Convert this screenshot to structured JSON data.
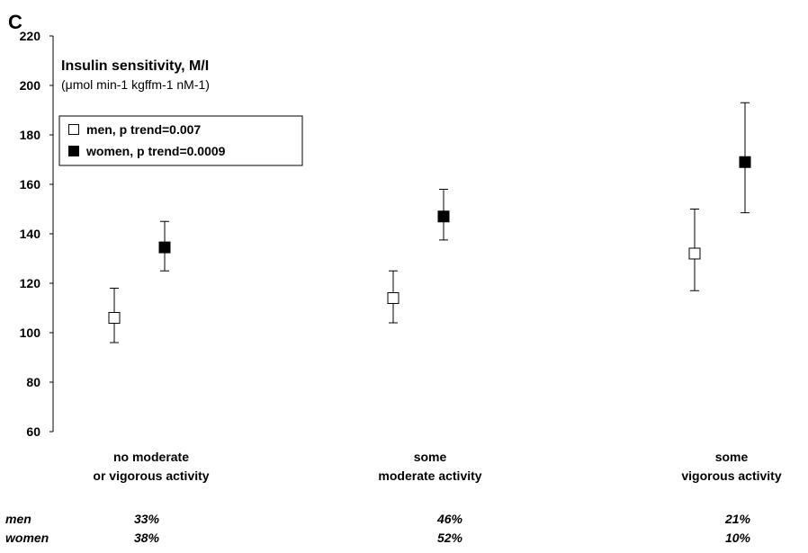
{
  "panel_letter": "C",
  "chart_data": {
    "type": "scatter",
    "title": "Insulin sensitivity, M/I",
    "subtitle": "(μmol min-1 kgffm-1 nM-1)",
    "ylim": [
      60,
      220
    ],
    "yticks": [
      60,
      80,
      100,
      120,
      140,
      160,
      180,
      200,
      220
    ],
    "categories": [
      [
        "no moderate",
        "or vigorous activity"
      ],
      [
        "some",
        "moderate activity"
      ],
      [
        "some",
        "vigorous activity"
      ]
    ],
    "series": [
      {
        "name": "men,  p trend=0.007",
        "marker": "open-square",
        "values": [
          106,
          114,
          132
        ],
        "err_low": [
          96,
          104,
          117
        ],
        "err_high": [
          118,
          125,
          150
        ]
      },
      {
        "name": "women,  p trend=0.0009",
        "marker": "filled-square",
        "values": [
          134.5,
          147,
          169
        ],
        "err_low": [
          125,
          137.5,
          148.5
        ],
        "err_high": [
          145,
          158,
          193
        ]
      }
    ],
    "legend_position": "top-left",
    "grid": false,
    "percent_table": {
      "rows": [
        {
          "label": "men",
          "values": [
            "33%",
            "46%",
            "21%"
          ]
        },
        {
          "label": "women",
          "values": [
            "38%",
            "52%",
            "10%"
          ]
        }
      ]
    }
  }
}
